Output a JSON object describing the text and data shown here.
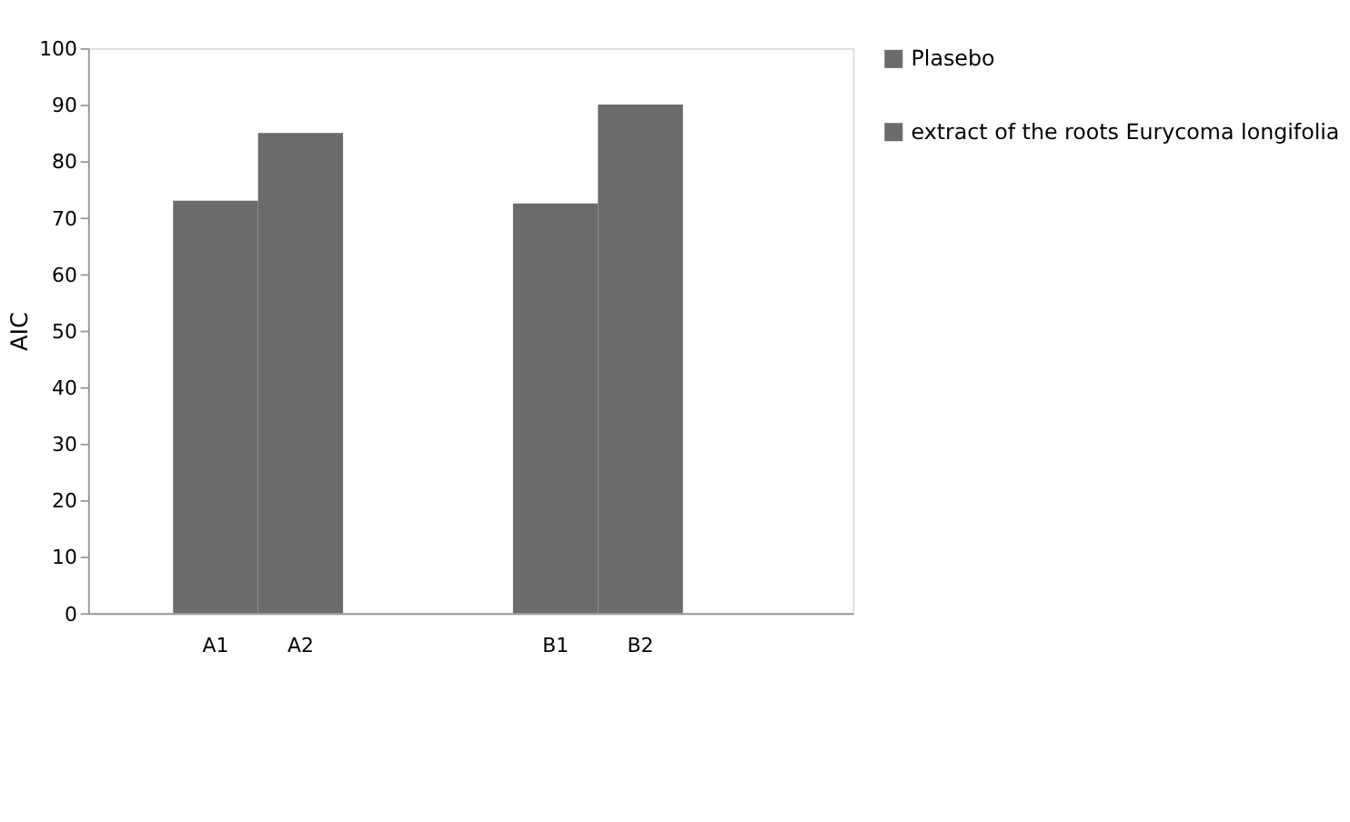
{
  "chart_data": {
    "type": "bar",
    "categories": [
      null,
      "A1",
      "A2",
      null,
      null,
      "B1",
      "B2",
      null,
      null
    ],
    "series": [
      {
        "name": "Plasebo",
        "color": "#6b6b6b",
        "values": [
          null,
          73,
          null,
          null,
          null,
          72.5,
          null,
          null,
          null
        ]
      },
      {
        "name": "extract of the roots Eurycoma longifolia",
        "color": "#6b6b6b",
        "values": [
          null,
          null,
          85,
          null,
          null,
          null,
          90,
          null,
          null
        ]
      }
    ],
    "ylabel": "AIC",
    "ylim": [
      0,
      100
    ],
    "yticks": [
      0,
      10,
      20,
      30,
      40,
      50,
      60,
      70,
      80,
      90,
      100
    ],
    "grid": false,
    "legend": "right"
  }
}
